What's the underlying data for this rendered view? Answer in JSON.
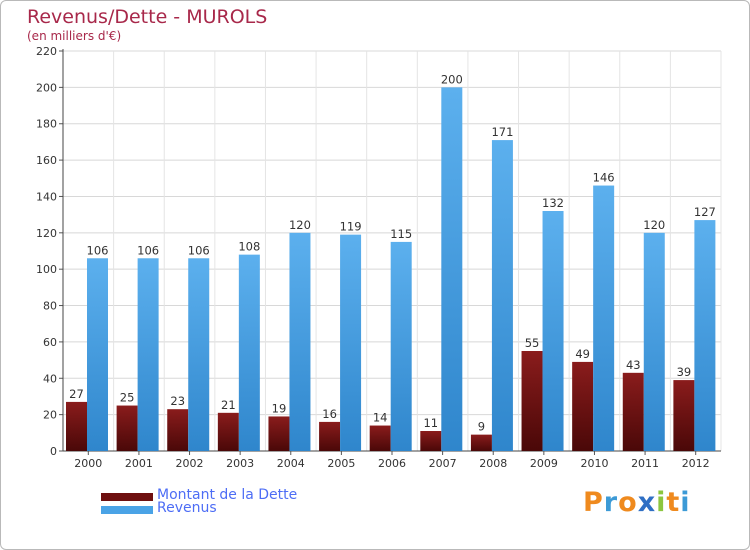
{
  "header": {
    "title": "Revenus/Dette - MUROLS",
    "subtitle": "(en milliers d'€)"
  },
  "chart_data": {
    "type": "bar",
    "title": "Revenus/Dette - MUROLS",
    "subtitle": "(en milliers d'€)",
    "xlabel": "",
    "ylabel": "",
    "ylim": [
      0,
      220
    ],
    "ytick_step": 20,
    "grid": true,
    "legend_position": "bottom-left",
    "categories": [
      "2000",
      "2001",
      "2002",
      "2003",
      "2004",
      "2005",
      "2006",
      "2007",
      "2008",
      "2009",
      "2010",
      "2011",
      "2012"
    ],
    "series": [
      {
        "name": "Montant de la Dette",
        "color": "#7a1a1a",
        "values": [
          27,
          25,
          23,
          21,
          19,
          16,
          14,
          11,
          9,
          55,
          49,
          43,
          39
        ]
      },
      {
        "name": "Revenus",
        "color": "#4aa3e6",
        "values": [
          106,
          106,
          106,
          108,
          120,
          119,
          115,
          200,
          171,
          132,
          146,
          120,
          127
        ]
      }
    ]
  },
  "legend": {
    "items": [
      {
        "label": "Montant de la Dette",
        "color": "#6e0f0f"
      },
      {
        "label": "Revenus",
        "color": "#4aa3e6"
      }
    ]
  },
  "logo": {
    "letters": [
      "P",
      "r",
      "o",
      "x",
      "i",
      "t",
      "i"
    ],
    "colors": [
      "#ef8a1e",
      "#3c9ad6",
      "#ef8a1e",
      "#2f6fc4",
      "#8cc63f",
      "#ef8a1e",
      "#3c9ad6"
    ]
  }
}
